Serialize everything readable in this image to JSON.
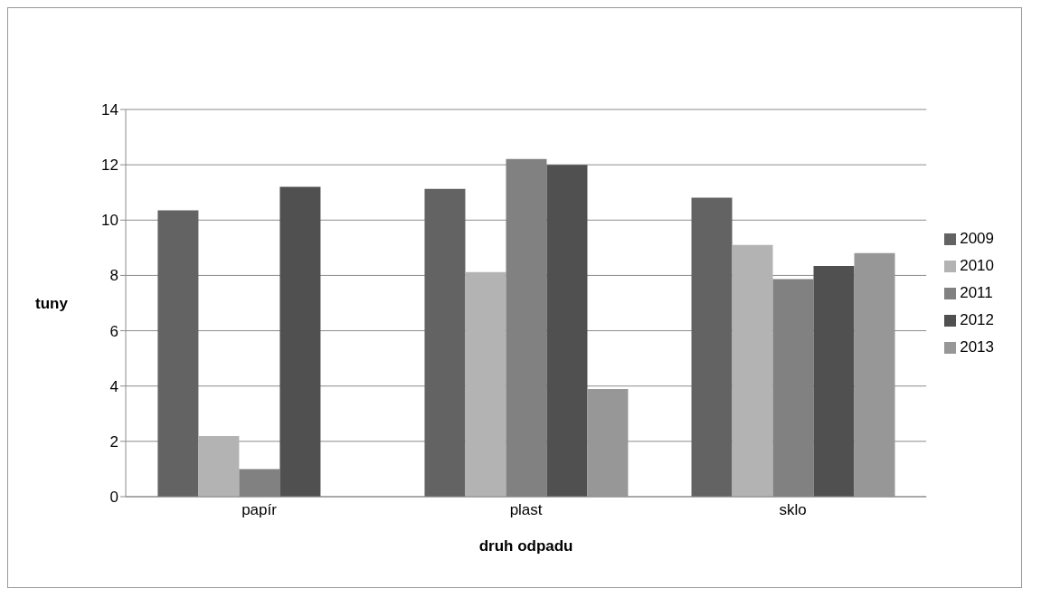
{
  "chart_data": {
    "type": "bar",
    "xlabel": "druh odpadu",
    "ylabel": "tuny",
    "categories": [
      "papír",
      "plast",
      "sklo"
    ],
    "series": [
      {
        "name": "2009",
        "color": "#636363",
        "values": [
          10.35,
          11.13,
          10.81
        ]
      },
      {
        "name": "2010",
        "color": "#b3b3b3",
        "values": [
          2.19,
          8.12,
          9.1
        ]
      },
      {
        "name": "2011",
        "color": "#818181",
        "values": [
          1.0,
          12.21,
          7.87
        ]
      },
      {
        "name": "2012",
        "color": "#505050",
        "values": [
          11.2,
          12.0,
          8.34
        ]
      },
      {
        "name": "2013",
        "color": "#979797",
        "values": [
          null,
          3.89,
          8.81
        ]
      }
    ],
    "ylim": [
      0,
      14
    ],
    "yticks": [
      0,
      2,
      4,
      6,
      8,
      10,
      12,
      14
    ],
    "grid": "y",
    "legend": "right"
  }
}
